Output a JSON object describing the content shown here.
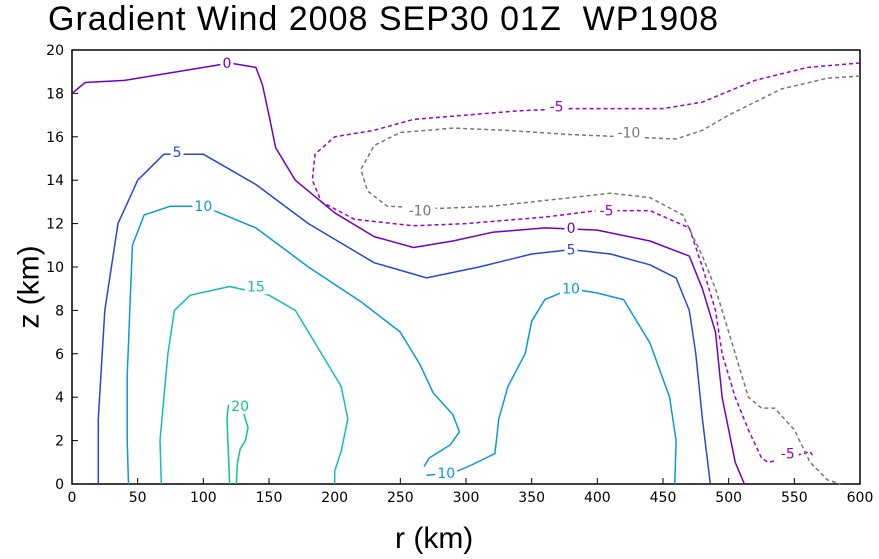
{
  "chart_data": {
    "type": "contour",
    "title": "Gradient Wind 2008 SEP30 01Z  WP1908",
    "xlabel": "r (km)",
    "ylabel": "z (km)",
    "xlim": [
      0,
      600
    ],
    "ylim": [
      0,
      20
    ],
    "xticks": [
      0,
      50,
      100,
      150,
      200,
      250,
      300,
      350,
      400,
      450,
      500,
      550,
      600
    ],
    "yticks": [
      0,
      2,
      4,
      6,
      8,
      10,
      12,
      14,
      16,
      18,
      20
    ],
    "colors": {
      "neg10": "#777777",
      "neg5": "#9b00c8",
      "zero": "#7000c8",
      "pos5": "#2a46d8",
      "pos10": "#0a9ad4",
      "pos15": "#12bcbc",
      "pos20": "#10c48a"
    },
    "contours": [
      {
        "id": "c20",
        "level": 20,
        "label": "20",
        "style": "solid",
        "color": "pos20",
        "points": [
          [
            120,
            0
          ],
          [
            119,
            1.5
          ],
          [
            118,
            3
          ],
          [
            119,
            3.6
          ],
          [
            124,
            3.9
          ],
          [
            130,
            3.4
          ],
          [
            134,
            2.6
          ],
          [
            132,
            2
          ],
          [
            128,
            1.6
          ],
          [
            126,
            1
          ],
          [
            125,
            0
          ]
        ],
        "labels": [
          {
            "text": "20",
            "x": 128,
            "y": 3.6
          }
        ]
      },
      {
        "id": "c15",
        "level": 15,
        "label": "15",
        "style": "solid",
        "color": "pos15",
        "points": [
          [
            68,
            0
          ],
          [
            67,
            2
          ],
          [
            70,
            4
          ],
          [
            73,
            6
          ],
          [
            78,
            8
          ],
          [
            90,
            8.7
          ],
          [
            120,
            9.1
          ],
          [
            150,
            8.7
          ],
          [
            170,
            8
          ],
          [
            185,
            6.5
          ],
          [
            205,
            4.5
          ],
          [
            210,
            3
          ],
          [
            205,
            1.5
          ],
          [
            200,
            0.6
          ],
          [
            200,
            0
          ]
        ],
        "labels": [
          {
            "text": "15",
            "x": 140,
            "y": 9.1
          }
        ]
      },
      {
        "id": "c10a",
        "level": 10,
        "label": "10",
        "style": "solid",
        "color": "pos10",
        "points": [
          [
            43,
            0
          ],
          [
            42,
            2
          ],
          [
            42,
            5
          ],
          [
            44,
            8
          ],
          [
            46,
            11
          ],
          [
            55,
            12.4
          ],
          [
            75,
            12.8
          ],
          [
            100,
            12.8
          ],
          [
            140,
            11.8
          ],
          [
            180,
            10
          ],
          [
            220,
            8.4
          ],
          [
            250,
            7
          ],
          [
            265,
            5.5
          ],
          [
            275,
            4.2
          ],
          [
            290,
            3.2
          ],
          [
            295,
            2.4
          ],
          [
            288,
            1.8
          ],
          [
            272,
            1.2
          ],
          [
            268,
            0.8
          ]
        ],
        "labels": [
          {
            "text": "10",
            "x": 100,
            "y": 12.8
          }
        ]
      },
      {
        "id": "c10b",
        "level": 10,
        "label": "10",
        "style": "solid",
        "color": "pos10",
        "points": [
          [
            270,
            0.4
          ],
          [
            290,
            0.5
          ],
          [
            305,
            0.9
          ],
          [
            322,
            1.4
          ],
          [
            325,
            3
          ],
          [
            332,
            4.5
          ],
          [
            345,
            6
          ],
          [
            350,
            7.5
          ],
          [
            360,
            8.5
          ],
          [
            380,
            9
          ],
          [
            400,
            8.8
          ],
          [
            420,
            8.5
          ],
          [
            440,
            6.5
          ],
          [
            455,
            4
          ],
          [
            460,
            2
          ],
          [
            459,
            0
          ]
        ],
        "labels": [
          {
            "text": "10",
            "x": 285,
            "y": 0.5
          },
          {
            "text": "10",
            "x": 380,
            "y": 9
          }
        ]
      },
      {
        "id": "c5",
        "level": 5,
        "label": "5",
        "style": "solid",
        "color": "pos5",
        "points": [
          [
            20,
            0
          ],
          [
            20,
            3
          ],
          [
            25,
            8
          ],
          [
            35,
            12
          ],
          [
            50,
            14
          ],
          [
            70,
            15.2
          ],
          [
            100,
            15.2
          ],
          [
            140,
            13.8
          ],
          [
            180,
            12
          ],
          [
            230,
            10.2
          ],
          [
            270,
            9.5
          ],
          [
            310,
            10
          ],
          [
            350,
            10.6
          ],
          [
            380,
            10.8
          ],
          [
            410,
            10.6
          ],
          [
            440,
            10.1
          ],
          [
            460,
            9.5
          ],
          [
            470,
            8
          ],
          [
            475,
            6
          ],
          [
            480,
            3
          ],
          [
            484,
            1
          ],
          [
            486,
            0
          ]
        ],
        "labels": [
          {
            "text": "5",
            "x": 80,
            "y": 15.3
          },
          {
            "text": "5",
            "x": 380,
            "y": 10.8
          }
        ]
      },
      {
        "id": "c0",
        "level": 0,
        "label": "0",
        "style": "solid",
        "color": "zero",
        "points": [
          [
            0,
            18
          ],
          [
            10,
            18.5
          ],
          [
            40,
            18.6
          ],
          [
            80,
            19
          ],
          [
            110,
            19.3
          ],
          [
            120,
            19.4
          ],
          [
            140,
            19.2
          ],
          [
            145,
            18.4
          ],
          [
            150,
            17
          ],
          [
            155,
            15.5
          ],
          [
            170,
            14
          ],
          [
            200,
            12.5
          ],
          [
            230,
            11.4
          ],
          [
            260,
            10.9
          ],
          [
            290,
            11.2
          ],
          [
            320,
            11.6
          ],
          [
            360,
            11.8
          ],
          [
            400,
            11.7
          ],
          [
            440,
            11.2
          ],
          [
            470,
            10.5
          ],
          [
            480,
            9
          ],
          [
            490,
            7
          ],
          [
            495,
            4
          ],
          [
            500,
            2.5
          ],
          [
            505,
            1
          ],
          [
            512,
            0
          ]
        ],
        "labels": [
          {
            "text": "0",
            "x": 118,
            "y": 19.4
          },
          {
            "text": "0",
            "x": 380,
            "y": 11.8
          }
        ]
      },
      {
        "id": "cm5",
        "level": -5,
        "label": "-5",
        "style": "dashed",
        "color": "neg5",
        "points": [
          [
            600,
            19.4
          ],
          [
            560,
            19.2
          ],
          [
            520,
            18.6
          ],
          [
            480,
            17.6
          ],
          [
            450,
            17.3
          ],
          [
            420,
            17.3
          ],
          [
            380,
            17.3
          ],
          [
            340,
            17.2
          ],
          [
            300,
            17
          ],
          [
            260,
            16.8
          ],
          [
            230,
            16.3
          ],
          [
            200,
            16
          ],
          [
            185,
            15.2
          ],
          [
            183,
            14
          ],
          [
            190,
            13
          ],
          [
            215,
            12.2
          ],
          [
            260,
            11.9
          ],
          [
            300,
            12
          ],
          [
            360,
            12.3
          ],
          [
            400,
            12.6
          ],
          [
            440,
            12.6
          ],
          [
            470,
            11.8
          ],
          [
            480,
            10
          ],
          [
            490,
            8
          ],
          [
            495,
            6
          ],
          [
            505,
            4
          ],
          [
            515,
            2.5
          ],
          [
            525,
            1.2
          ],
          [
            530,
            1
          ],
          [
            545,
            1.2
          ],
          [
            562,
            1.5
          ],
          [
            565,
            1.2
          ]
        ],
        "labels": [
          {
            "text": "-5",
            "x": 369,
            "y": 17.4
          },
          {
            "text": "-5",
            "x": 407,
            "y": 12.6
          },
          {
            "text": "-5",
            "x": 545,
            "y": 1.4
          }
        ]
      },
      {
        "id": "cm10",
        "level": -10,
        "label": "-10",
        "style": "dashed",
        "color": "neg10",
        "points": [
          [
            600,
            18.8
          ],
          [
            575,
            18.7
          ],
          [
            540,
            18.2
          ],
          [
            500,
            17
          ],
          [
            480,
            16.3
          ],
          [
            460,
            15.9
          ],
          [
            420,
            16
          ],
          [
            380,
            16.1
          ],
          [
            330,
            16.3
          ],
          [
            290,
            16.4
          ],
          [
            250,
            16.2
          ],
          [
            230,
            15.6
          ],
          [
            220,
            14.5
          ],
          [
            225,
            13.5
          ],
          [
            240,
            12.8
          ],
          [
            280,
            12.7
          ],
          [
            320,
            12.8
          ],
          [
            380,
            13.2
          ],
          [
            410,
            13.4
          ],
          [
            440,
            13.2
          ],
          [
            465,
            12.4
          ],
          [
            480,
            10.5
          ],
          [
            490,
            9
          ],
          [
            500,
            7
          ],
          [
            510,
            5
          ],
          [
            515,
            4
          ],
          [
            525,
            3.5
          ],
          [
            535,
            3.5
          ],
          [
            550,
            2.5
          ],
          [
            562,
            1
          ],
          [
            575,
            0.2
          ],
          [
            585,
            0
          ]
        ],
        "labels": [
          {
            "text": "-10",
            "x": 424,
            "y": 16.2
          },
          {
            "text": "-10",
            "x": 265,
            "y": 12.6
          }
        ]
      }
    ]
  }
}
